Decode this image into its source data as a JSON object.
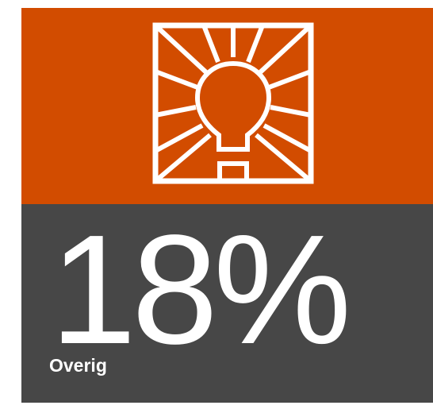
{
  "stat": {
    "value": "18%",
    "label": "Overig"
  }
}
